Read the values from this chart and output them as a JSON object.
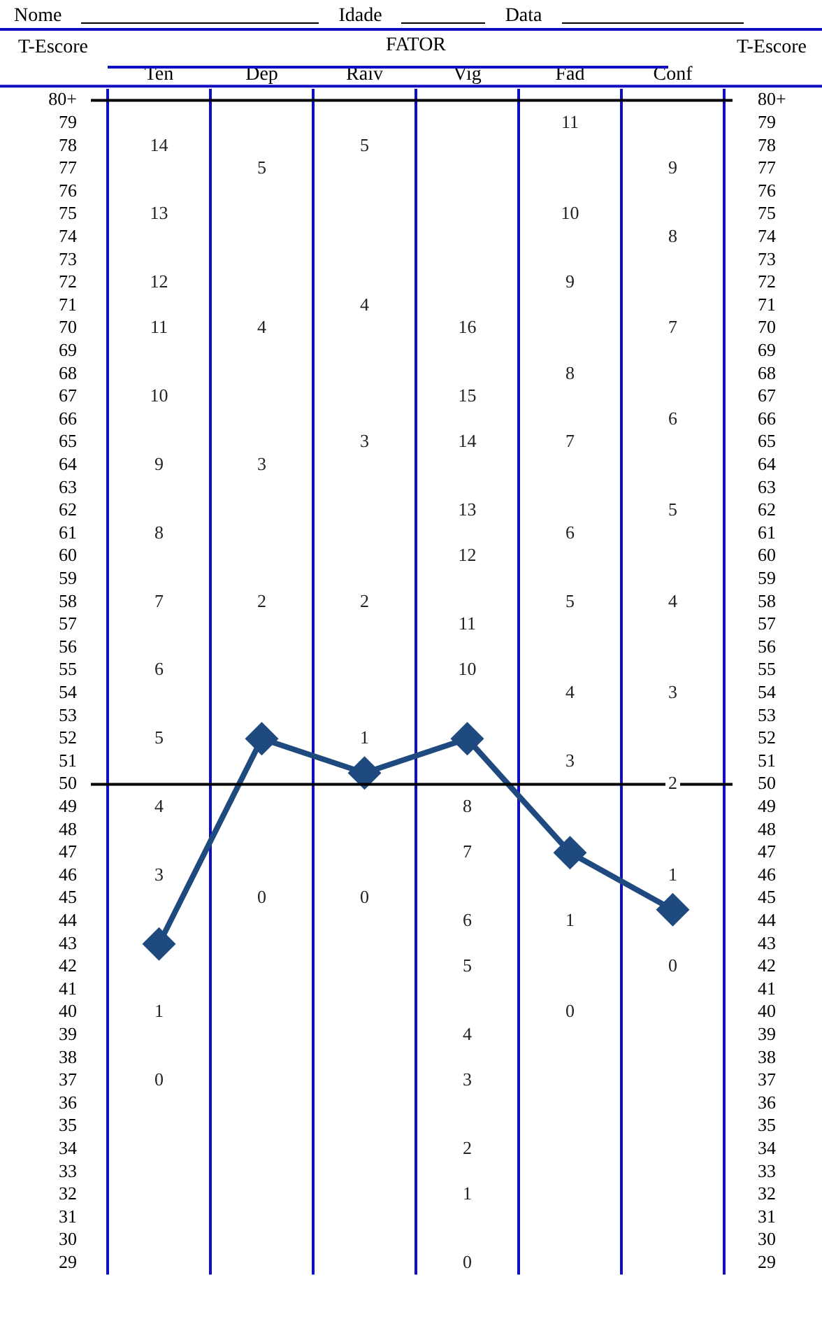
{
  "chart_data": {
    "type": "line",
    "xlabel": "FATOR",
    "ylabel": "T-Escore",
    "y2label": "T-Escore",
    "categories": [
      "Ten",
      "Dep",
      "Raiv",
      "Vig",
      "Fad",
      "Conf"
    ],
    "series": [
      {
        "color": "#1f4a7f",
        "values": [
          43,
          52,
          50.5,
          52,
          47,
          44.5
        ]
      }
    ],
    "marker": "diamond",
    "grid": "x",
    "legend": false,
    "ylim": [
      28.5,
      80.5
    ],
    "y2lim": [
      28.5,
      80.5
    ],
    "yticks": [
      29,
      30,
      31,
      32,
      33,
      34,
      35,
      36,
      37,
      38,
      39,
      40,
      41,
      42,
      43,
      44,
      45,
      46,
      47,
      48,
      49,
      50,
      51,
      52,
      53,
      54,
      55,
      56,
      57,
      58,
      59,
      60,
      61,
      62,
      63,
      64,
      65,
      66,
      67,
      68,
      69,
      70,
      71,
      72,
      73,
      74,
      75,
      76,
      77,
      78,
      79,
      {
        "value": 80,
        "label": "80+"
      }
    ],
    "y2ticks": [
      29,
      30,
      31,
      32,
      33,
      34,
      35,
      36,
      37,
      38,
      39,
      40,
      41,
      42,
      43,
      44,
      45,
      46,
      47,
      48,
      49,
      50,
      51,
      52,
      53,
      54,
      55,
      56,
      57,
      58,
      59,
      60,
      61,
      62,
      63,
      64,
      65,
      66,
      67,
      68,
      69,
      70,
      71,
      72,
      73,
      74,
      75,
      76,
      77,
      78,
      79,
      {
        "value": 80,
        "label": "80+"
      }
    ],
    "ref_lines": [
      {
        "axis": "y",
        "value": 50,
        "color": "#000000"
      },
      {
        "axis": "y",
        "value": 80,
        "color": "#000000"
      }
    ],
    "annotations": [
      "Nome",
      "Idade",
      "Data",
      {
        "text": "14",
        "x": "Ten",
        "y": 78
      },
      {
        "text": "13",
        "x": "Ten",
        "y": 75
      },
      {
        "text": "12",
        "x": "Ten",
        "y": 72
      },
      {
        "text": "11",
        "x": "Ten",
        "y": 70
      },
      {
        "text": "10",
        "x": "Ten",
        "y": 67
      },
      {
        "text": "9",
        "x": "Ten",
        "y": 64
      },
      {
        "text": "8",
        "x": "Ten",
        "y": 61
      },
      {
        "text": "7",
        "x": "Ten",
        "y": 58
      },
      {
        "text": "6",
        "x": "Ten",
        "y": 55
      },
      {
        "text": "5",
        "x": "Ten",
        "y": 52
      },
      {
        "text": "4",
        "x": "Ten",
        "y": 49
      },
      {
        "text": "3",
        "x": "Ten",
        "y": 46
      },
      {
        "text": "1",
        "x": "Ten",
        "y": 40
      },
      {
        "text": "0",
        "x": "Ten",
        "y": 37
      },
      {
        "text": "5",
        "x": "Dep",
        "y": 77
      },
      {
        "text": "4",
        "x": "Dep",
        "y": 70
      },
      {
        "text": "3",
        "x": "Dep",
        "y": 64
      },
      {
        "text": "2",
        "x": "Dep",
        "y": 58
      },
      {
        "text": "0",
        "x": "Dep",
        "y": 45
      },
      {
        "text": "5",
        "x": "Raiv",
        "y": 78
      },
      {
        "text": "4",
        "x": "Raiv",
        "y": 71
      },
      {
        "text": "3",
        "x": "Raiv",
        "y": 65
      },
      {
        "text": "2",
        "x": "Raiv",
        "y": 58
      },
      {
        "text": "1",
        "x": "Raiv",
        "y": 52
      },
      {
        "text": "0",
        "x": "Raiv",
        "y": 45
      },
      {
        "text": "16",
        "x": "Vig",
        "y": 70
      },
      {
        "text": "15",
        "x": "Vig",
        "y": 67
      },
      {
        "text": "14",
        "x": "Vig",
        "y": 65
      },
      {
        "text": "13",
        "x": "Vig",
        "y": 62
      },
      {
        "text": "12",
        "x": "Vig",
        "y": 60
      },
      {
        "text": "11",
        "x": "Vig",
        "y": 57
      },
      {
        "text": "10",
        "x": "Vig",
        "y": 55
      },
      {
        "text": "8",
        "x": "Vig",
        "y": 49
      },
      {
        "text": "7",
        "x": "Vig",
        "y": 47
      },
      {
        "text": "6",
        "x": "Vig",
        "y": 44
      },
      {
        "text": "5",
        "x": "Vig",
        "y": 42
      },
      {
        "text": "4",
        "x": "Vig",
        "y": 39
      },
      {
        "text": "3",
        "x": "Vig",
        "y": 37
      },
      {
        "text": "2",
        "x": "Vig",
        "y": 34
      },
      {
        "text": "1",
        "x": "Vig",
        "y": 32
      },
      {
        "text": "0",
        "x": "Vig",
        "y": 29
      },
      {
        "text": "11",
        "x": "Fad",
        "y": 79
      },
      {
        "text": "10",
        "x": "Fad",
        "y": 75
      },
      {
        "text": "9",
        "x": "Fad",
        "y": 72
      },
      {
        "text": "8",
        "x": "Fad",
        "y": 68
      },
      {
        "text": "7",
        "x": "Fad",
        "y": 65
      },
      {
        "text": "6",
        "x": "Fad",
        "y": 61
      },
      {
        "text": "5",
        "x": "Fad",
        "y": 58
      },
      {
        "text": "4",
        "x": "Fad",
        "y": 54
      },
      {
        "text": "3",
        "x": "Fad",
        "y": 51
      },
      {
        "text": "1",
        "x": "Fad",
        "y": 44
      },
      {
        "text": "0",
        "x": "Fad",
        "y": 40
      },
      {
        "text": "9",
        "x": "Conf",
        "y": 77
      },
      {
        "text": "8",
        "x": "Conf",
        "y": 74
      },
      {
        "text": "7",
        "x": "Conf",
        "y": 70
      },
      {
        "text": "6",
        "x": "Conf",
        "y": 66
      },
      {
        "text": "5",
        "x": "Conf",
        "y": 62
      },
      {
        "text": "4",
        "x": "Conf",
        "y": 58
      },
      {
        "text": "3",
        "x": "Conf",
        "y": 54
      },
      {
        "text": "2",
        "x": "Conf",
        "y": 50
      },
      {
        "text": "1",
        "x": "Conf",
        "y": 46
      },
      {
        "text": "0",
        "x": "Conf",
        "y": 42
      }
    ]
  }
}
